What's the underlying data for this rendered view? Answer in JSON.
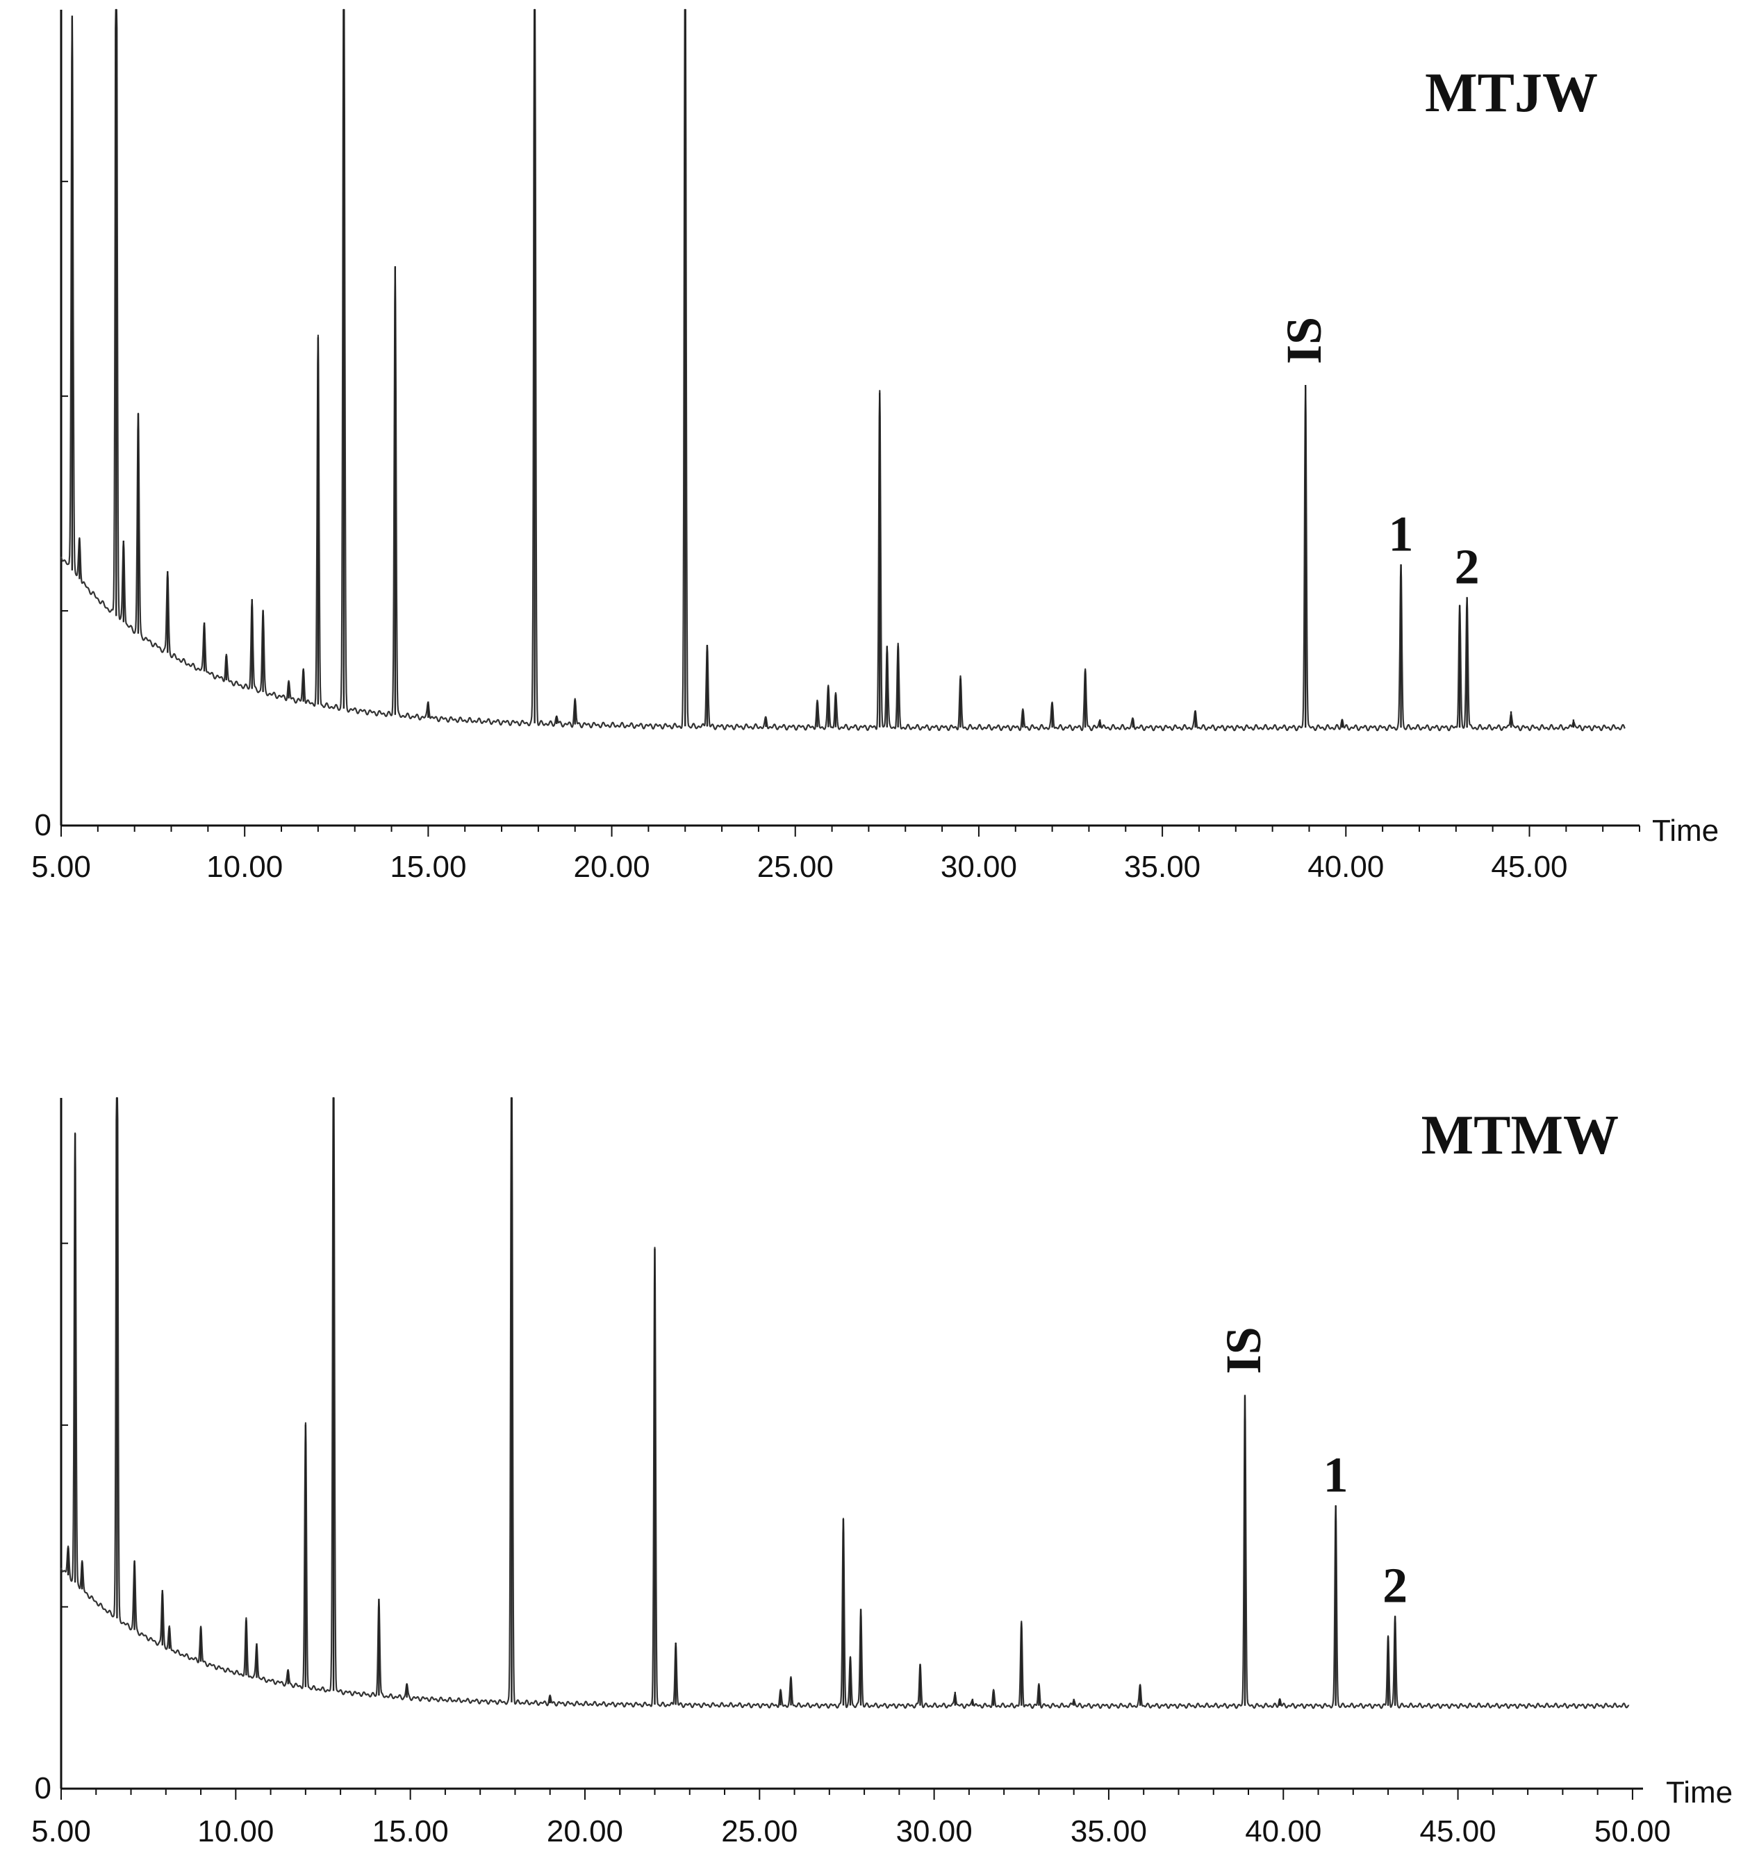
{
  "chart_data": [
    {
      "type": "line",
      "title": "MTJW",
      "xlabel": "Time",
      "ylabel": "",
      "xlim": [
        5.0,
        48.0
      ],
      "ylim": [
        0,
        100
      ],
      "zero_label": "0",
      "x_ticks": [
        "5.00",
        "10.00",
        "15.00",
        "20.00",
        "25.00",
        "30.00",
        "35.00",
        "40.00",
        "45.00"
      ],
      "baseline": {
        "start": 33,
        "end": 12,
        "decay": 3.5
      },
      "peaks": [
        {
          "x": 5.3,
          "h": 68
        },
        {
          "x": 5.5,
          "h": 5
        },
        {
          "x": 6.5,
          "h": 100
        },
        {
          "x": 6.7,
          "h": 10
        },
        {
          "x": 7.1,
          "h": 27
        },
        {
          "x": 7.9,
          "h": 10
        },
        {
          "x": 8.9,
          "h": 6
        },
        {
          "x": 9.5,
          "h": 3
        },
        {
          "x": 10.2,
          "h": 11
        },
        {
          "x": 10.5,
          "h": 10
        },
        {
          "x": 11.2,
          "h": 2
        },
        {
          "x": 11.6,
          "h": 4
        },
        {
          "x": 12.0,
          "h": 45
        },
        {
          "x": 12.7,
          "h": 100
        },
        {
          "x": 14.1,
          "h": 55
        },
        {
          "x": 15.0,
          "h": 2
        },
        {
          "x": 17.9,
          "h": 100
        },
        {
          "x": 18.5,
          "h": 1
        },
        {
          "x": 19.0,
          "h": 3
        },
        {
          "x": 22.0,
          "h": 100
        },
        {
          "x": 22.6,
          "h": 10
        },
        {
          "x": 24.2,
          "h": 1
        },
        {
          "x": 25.6,
          "h": 3
        },
        {
          "x": 25.9,
          "h": 5
        },
        {
          "x": 26.1,
          "h": 4
        },
        {
          "x": 27.3,
          "h": 41
        },
        {
          "x": 27.5,
          "h": 10
        },
        {
          "x": 27.8,
          "h": 10
        },
        {
          "x": 29.5,
          "h": 6
        },
        {
          "x": 31.2,
          "h": 2
        },
        {
          "x": 32.0,
          "h": 3
        },
        {
          "x": 32.9,
          "h": 7
        },
        {
          "x": 33.3,
          "h": 1
        },
        {
          "x": 34.2,
          "h": 1
        },
        {
          "x": 35.9,
          "h": 2
        },
        {
          "x": 38.9,
          "h": 42
        },
        {
          "x": 39.9,
          "h": 1
        },
        {
          "x": 41.5,
          "h": 20
        },
        {
          "x": 43.1,
          "h": 15
        },
        {
          "x": 43.3,
          "h": 16
        },
        {
          "x": 44.5,
          "h": 2
        },
        {
          "x": 46.2,
          "h": 1
        }
      ],
      "annotations": [
        {
          "text": "IS",
          "x": 38.9,
          "h": 42,
          "rotated": true
        },
        {
          "text": "1",
          "x": 41.5,
          "h": 20,
          "rotated": false
        },
        {
          "text": "2",
          "x": 43.3,
          "h": 16,
          "rotated": false
        }
      ]
    },
    {
      "type": "line",
      "title": "MTMW",
      "xlabel": "Time",
      "ylabel": "",
      "xlim": [
        5.0,
        50.3
      ],
      "ylim": [
        0,
        100
      ],
      "zero_label": "0",
      "x_ticks": [
        "5.00",
        "10.00",
        "15.00",
        "20.00",
        "25.00",
        "30.00",
        "35.00",
        "40.00",
        "45.00",
        "50.00"
      ],
      "baseline": {
        "start": 32,
        "end": 12,
        "decay": 3.5
      },
      "peaks": [
        {
          "x": 5.2,
          "h": 4
        },
        {
          "x": 5.4,
          "h": 65
        },
        {
          "x": 5.6,
          "h": 4
        },
        {
          "x": 6.6,
          "h": 100
        },
        {
          "x": 7.1,
          "h": 10
        },
        {
          "x": 7.9,
          "h": 8
        },
        {
          "x": 8.1,
          "h": 3
        },
        {
          "x": 9.0,
          "h": 5
        },
        {
          "x": 10.3,
          "h": 8
        },
        {
          "x": 10.6,
          "h": 5
        },
        {
          "x": 11.5,
          "h": 2
        },
        {
          "x": 12.0,
          "h": 38
        },
        {
          "x": 12.8,
          "h": 100
        },
        {
          "x": 14.1,
          "h": 14
        },
        {
          "x": 14.9,
          "h": 2
        },
        {
          "x": 17.9,
          "h": 100
        },
        {
          "x": 19.0,
          "h": 1
        },
        {
          "x": 22.0,
          "h": 66
        },
        {
          "x": 22.6,
          "h": 9
        },
        {
          "x": 25.6,
          "h": 2
        },
        {
          "x": 25.9,
          "h": 4
        },
        {
          "x": 27.4,
          "h": 27
        },
        {
          "x": 27.6,
          "h": 7
        },
        {
          "x": 27.9,
          "h": 14
        },
        {
          "x": 29.6,
          "h": 6
        },
        {
          "x": 30.6,
          "h": 2
        },
        {
          "x": 31.1,
          "h": 1
        },
        {
          "x": 31.7,
          "h": 2
        },
        {
          "x": 32.5,
          "h": 12
        },
        {
          "x": 33.0,
          "h": 3
        },
        {
          "x": 34.0,
          "h": 1
        },
        {
          "x": 35.9,
          "h": 3
        },
        {
          "x": 38.9,
          "h": 45
        },
        {
          "x": 39.9,
          "h": 1
        },
        {
          "x": 41.5,
          "h": 29
        },
        {
          "x": 43.0,
          "h": 10
        },
        {
          "x": 43.2,
          "h": 13
        }
      ],
      "annotations": [
        {
          "text": "IS",
          "x": 38.9,
          "h": 45,
          "rotated": true
        },
        {
          "text": "1",
          "x": 41.5,
          "h": 29,
          "rotated": false
        },
        {
          "text": "2",
          "x": 43.2,
          "h": 13,
          "rotated": false
        }
      ]
    }
  ]
}
